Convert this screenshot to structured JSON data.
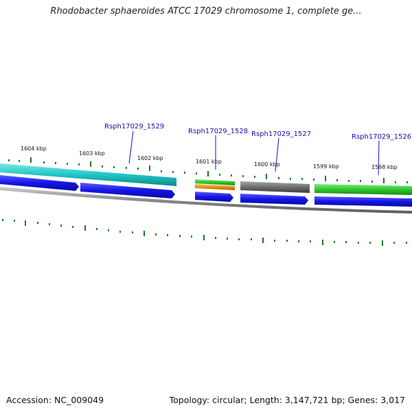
{
  "title": "Rhodobacter sphaeroides ATCC 17029 chromosome 1, complete ge...",
  "accession": "Accession: NC_009049",
  "summary": "Topology: circular; Length: 3,147,721 bp; Genes: 3,017",
  "ticks": [
    "1604 kbp",
    "1603 kbp",
    "1602 kbp",
    "1601 kbp",
    "1600 kbp",
    "1599 kbp",
    "1598 kbp"
  ],
  "genes": [
    "Rsph17029_1529",
    "Rsph17029_1528",
    "Rsph17029_1527",
    "Rsph17029_1526"
  ],
  "colors": {
    "outer_cyan": "#1fc6c6",
    "blue": "#1414e6",
    "green": "#2cc82c",
    "orange": "#f08c10",
    "gray": "#6e6e6e",
    "tick": "#1a7a1a"
  }
}
